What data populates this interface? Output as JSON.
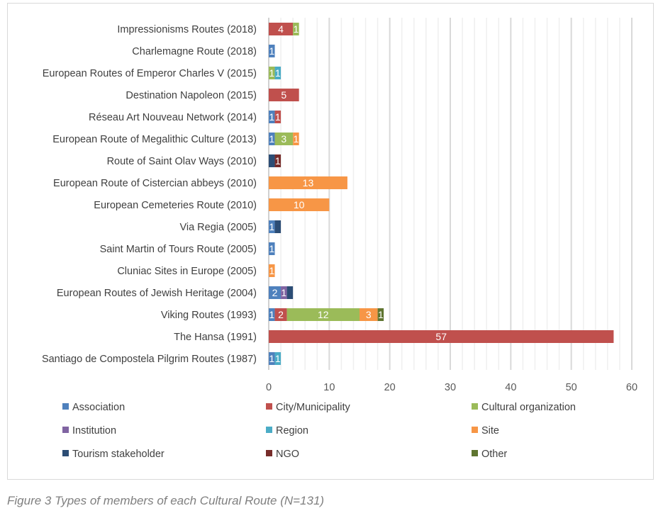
{
  "chart_data": {
    "type": "bar",
    "orientation": "horizontal",
    "stacked": true,
    "title": "",
    "xlim": [
      0,
      60
    ],
    "xticks": [
      0,
      10,
      20,
      30,
      40,
      50,
      60
    ],
    "grid": true,
    "legend_placement": "bottom",
    "categories": [
      "Impressionisms Routes (2018)",
      "Charlemagne Route (2018)",
      "European Routes of Emperor Charles V (2015)",
      "Destination Napoleon (2015)",
      "Réseau Art Nouveau Network (2014)",
      "European Route of Megalithic Culture (2013)",
      "Route of Saint Olav Ways (2010)",
      "European Route of Cistercian abbeys (2010)",
      "European Cemeteries Route (2010)",
      "Via Regia (2005)",
      "Saint Martin of Tours Route (2005)",
      "Cluniac Sites in Europe (2005)",
      "European Routes of Jewish Heritage (2004)",
      "Viking Routes (1993)",
      "The Hansa (1991)",
      "Santiago de Compostela Pilgrim Routes (1987)"
    ],
    "series": [
      {
        "name": "Association",
        "color": "#4f81bd",
        "values": [
          0,
          1,
          0,
          0,
          1,
          1,
          0,
          0,
          0,
          1,
          1,
          0,
          2,
          1,
          0,
          1
        ]
      },
      {
        "name": "City/Municipality",
        "color": "#c0504d",
        "values": [
          4,
          0,
          0,
          5,
          1,
          0,
          0,
          0,
          0,
          0,
          0,
          0,
          0,
          2,
          57,
          0
        ]
      },
      {
        "name": "Cultural organization",
        "color": "#9bbb59",
        "values": [
          1,
          0,
          1,
          0,
          0,
          3,
          0,
          0,
          0,
          0,
          0,
          0,
          0,
          12,
          0,
          0
        ]
      },
      {
        "name": "Institution",
        "color": "#8064a2",
        "values": [
          0,
          0,
          0,
          0,
          0,
          0,
          0,
          0,
          0,
          0,
          0,
          0,
          1,
          0,
          0,
          0
        ]
      },
      {
        "name": "Region",
        "color": "#4bacc6",
        "values": [
          0,
          0,
          1,
          0,
          0,
          0,
          0,
          0,
          0,
          0,
          0,
          0,
          0,
          0,
          0,
          1
        ]
      },
      {
        "name": "Site",
        "color": "#f79646",
        "values": [
          0,
          0,
          0,
          0,
          0,
          1,
          0,
          13,
          10,
          0,
          0,
          1,
          0,
          3,
          0,
          0
        ]
      },
      {
        "name": "Tourism stakeholder",
        "color": "#2c4d75",
        "values": [
          0,
          0,
          0,
          0,
          0,
          0,
          1,
          0,
          0,
          1,
          0,
          0,
          1,
          0,
          0,
          0
        ],
        "labels_shown": false
      },
      {
        "name": "NGO",
        "color": "#772c2a",
        "values": [
          0,
          0,
          0,
          0,
          0,
          0,
          1,
          0,
          0,
          0,
          0,
          0,
          0,
          0,
          0,
          0
        ]
      },
      {
        "name": "Other",
        "color": "#5f7530",
        "values": [
          0,
          0,
          0,
          0,
          0,
          0,
          0,
          0,
          0,
          0,
          0,
          0,
          0,
          1,
          0,
          0
        ]
      }
    ]
  },
  "caption": "Figure 3 Types of members of each Cultural Route (N=131)"
}
